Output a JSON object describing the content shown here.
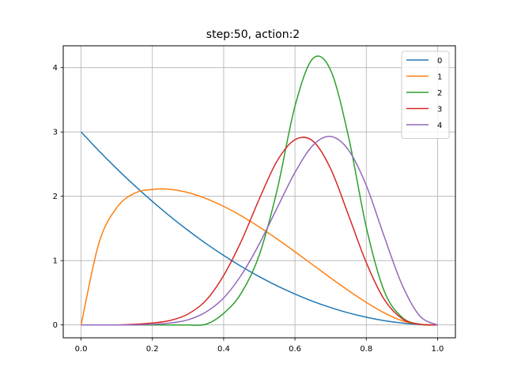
{
  "chart_data": {
    "type": "line",
    "title": "step:50, action:2",
    "xlabel": "",
    "ylabel": "",
    "xlim": [
      -0.05,
      1.05
    ],
    "ylim": [
      -0.2,
      4.34
    ],
    "grid": true,
    "legend_position": "top-right",
    "x_ticks": [
      0.0,
      0.2,
      0.4,
      0.6,
      0.8,
      1.0
    ],
    "x_tick_labels": [
      "0.0",
      "0.2",
      "0.4",
      "0.6",
      "0.8",
      "1.0"
    ],
    "y_ticks": [
      0,
      1,
      2,
      3,
      4
    ],
    "y_tick_labels": [
      "0",
      "1",
      "2",
      "3",
      "4"
    ],
    "x": [
      0.0,
      0.05,
      0.1,
      0.15,
      0.2,
      0.25,
      0.3,
      0.35,
      0.4,
      0.45,
      0.5,
      0.55,
      0.6,
      0.65,
      0.7,
      0.75,
      0.8,
      0.85,
      0.9,
      0.95,
      1.0
    ],
    "series": [
      {
        "name": "0",
        "color": "#1f77b4",
        "values": [
          3.0,
          2.707,
          2.43,
          2.167,
          1.92,
          1.687,
          1.47,
          1.267,
          1.08,
          0.907,
          0.75,
          0.607,
          0.48,
          0.367,
          0.27,
          0.187,
          0.12,
          0.067,
          0.03,
          0.007,
          0.0
        ]
      },
      {
        "name": "1",
        "color": "#ff7f0e",
        "values": [
          0.0,
          1.271,
          1.823,
          2.048,
          2.107,
          2.109,
          2.058,
          1.966,
          1.843,
          1.694,
          1.522,
          1.335,
          1.138,
          0.934,
          0.731,
          0.535,
          0.351,
          0.189,
          0.067,
          0.01,
          0.0
        ]
      },
      {
        "name": "2",
        "color": "#2ca02c",
        "values": [
          0.0,
          0.0,
          0.0,
          0.0,
          0.0,
          0.0,
          0.0,
          0.01,
          0.18,
          0.5,
          1.09,
          2.1,
          3.4,
          4.14,
          3.96,
          2.93,
          1.52,
          0.53,
          0.12,
          0.01,
          0.0
        ]
      },
      {
        "name": "3",
        "color": "#d62728",
        "values": [
          0.0,
          0.0,
          0.0,
          0.01,
          0.03,
          0.07,
          0.17,
          0.38,
          0.77,
          1.31,
          1.96,
          2.55,
          2.88,
          2.86,
          2.43,
          1.71,
          0.97,
          0.4,
          0.1,
          0.01,
          0.0
        ]
      },
      {
        "name": "4",
        "color": "#9467bd",
        "values": [
          0.0,
          0.0,
          0.0,
          0.0,
          0.01,
          0.03,
          0.08,
          0.2,
          0.42,
          0.78,
          1.26,
          1.82,
          2.37,
          2.79,
          2.93,
          2.72,
          2.17,
          1.38,
          0.63,
          0.14,
          0.0
        ]
      }
    ]
  }
}
